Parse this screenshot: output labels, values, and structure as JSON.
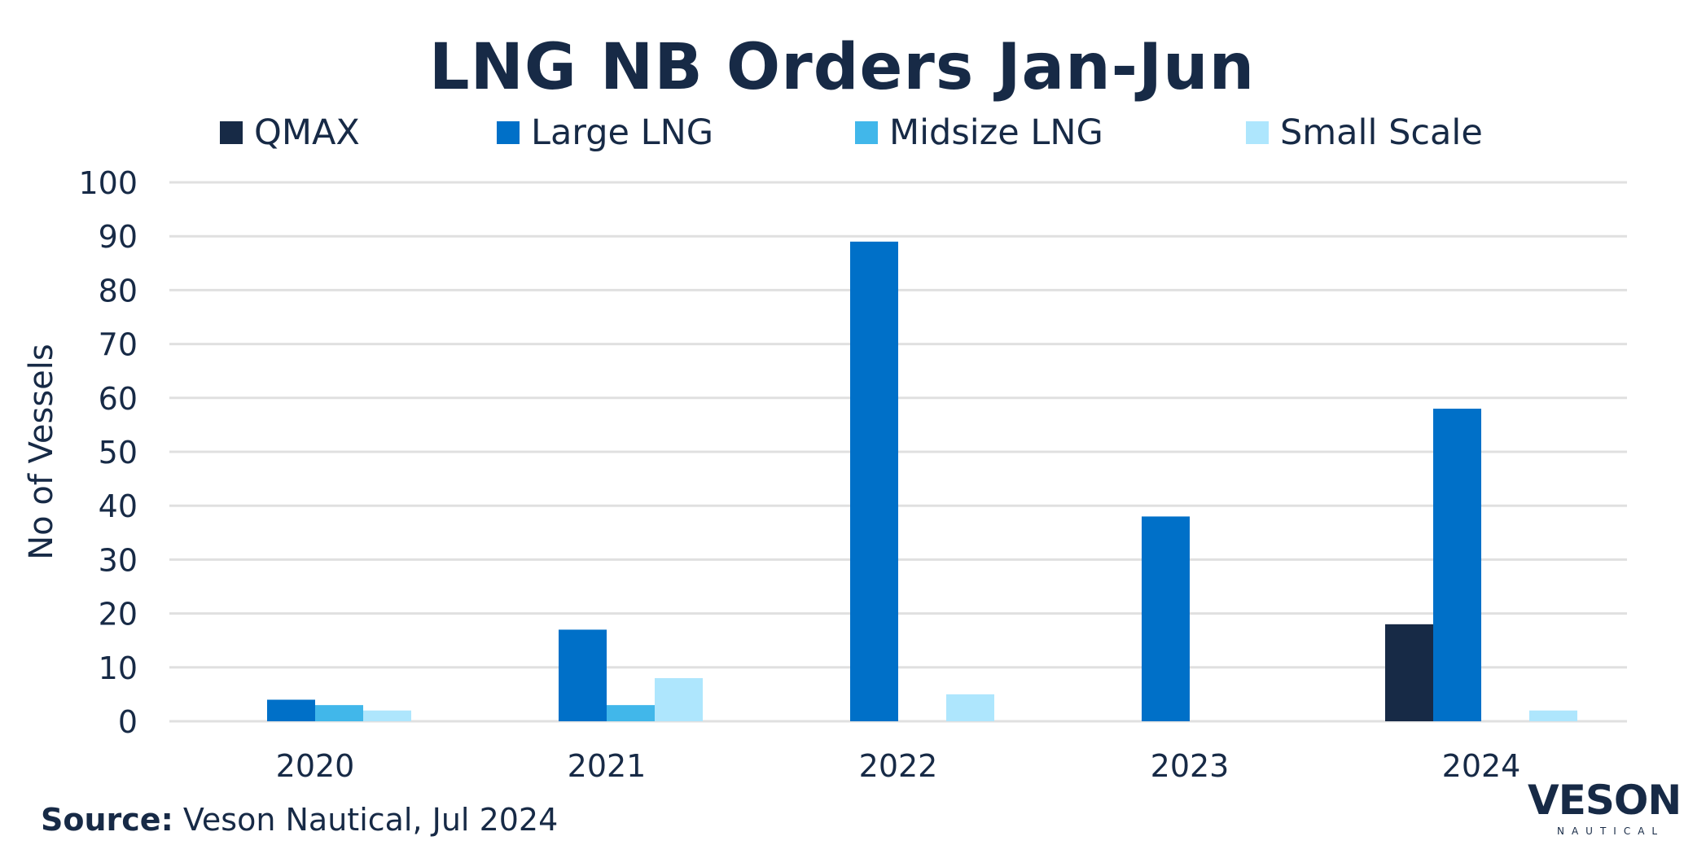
{
  "chart_data": {
    "type": "bar",
    "title": "LNG NB Orders Jan-Jun",
    "xlabel": "",
    "ylabel": "No of Vessels",
    "ylim": [
      0,
      100
    ],
    "yticks": [
      0,
      10,
      20,
      30,
      40,
      50,
      60,
      70,
      80,
      90,
      100
    ],
    "grid": true,
    "legend_position": "top",
    "categories": [
      "2020",
      "2021",
      "2022",
      "2023",
      "2024"
    ],
    "series": [
      {
        "name": "QMAX",
        "color": "#172A46",
        "values": [
          0,
          0,
          0,
          0,
          18
        ]
      },
      {
        "name": "Large LNG",
        "color": "#0070C8",
        "values": [
          4,
          17,
          89,
          38,
          58
        ]
      },
      {
        "name": "Midsize LNG",
        "color": "#41B7EA",
        "values": [
          3,
          3,
          0,
          0,
          0
        ]
      },
      {
        "name": "Small Scale",
        "color": "#AEE6FD",
        "values": [
          2,
          8,
          5,
          0,
          2
        ]
      }
    ]
  },
  "source": {
    "label": "Source:",
    "text": "Veson Nautical, Jul 2024"
  },
  "logo": {
    "word": "VESON",
    "sub": "NAUTICAL",
    "accent": "#F47B20"
  }
}
